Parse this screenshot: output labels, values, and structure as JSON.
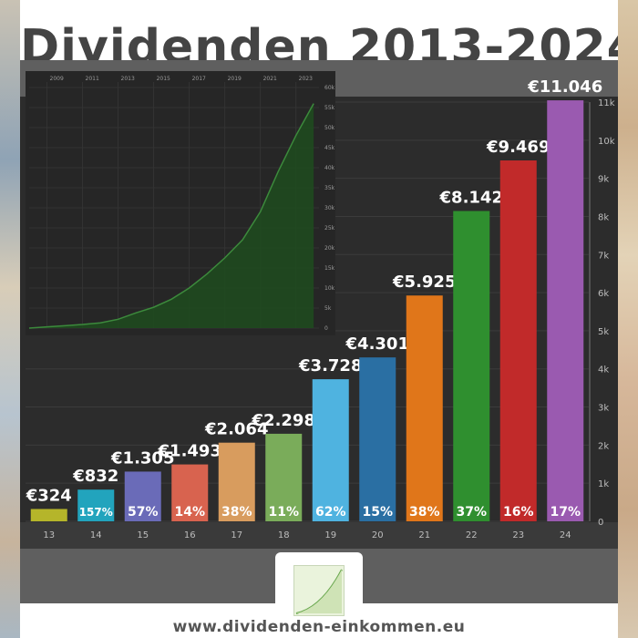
{
  "page": {
    "title": "Dividenden 2013-2024",
    "footer": "www.dividenden-einkommen.eu"
  },
  "chart_data": [
    {
      "type": "bar",
      "categories": [
        "13",
        "14",
        "15",
        "16",
        "17",
        "18",
        "19",
        "20",
        "21",
        "22",
        "23",
        "24"
      ],
      "values": [
        324,
        832,
        1305,
        1493,
        2064,
        2298,
        3728,
        4301,
        5925,
        8142,
        9469,
        11046
      ],
      "value_labels": [
        "€324",
        "€832",
        "€1.305",
        "€1.493",
        "€2.064",
        "€2.298",
        "€3.728",
        "€4.301",
        "€5.925",
        "€8.142",
        "€9.469",
        "€11.046"
      ],
      "growth_labels": [
        "",
        "157%",
        "57%",
        "14%",
        "38%",
        "11%",
        "62%",
        "15%",
        "38%",
        "37%",
        "16%",
        "17%"
      ],
      "colors": [
        "#b5b52a",
        "#22a4bd",
        "#6a6bb8",
        "#d8634f",
        "#d89c5e",
        "#7aac5a",
        "#4fb3e0",
        "#2a6fa3",
        "#e0761a",
        "#2f8f2f",
        "#c12a2a",
        "#9a5ab0"
      ],
      "yticks": [
        "0",
        "1k",
        "2k",
        "3k",
        "4k",
        "5k",
        "6k",
        "7k",
        "8k",
        "9k",
        "10k",
        "11k"
      ],
      "ylim": [
        0,
        11000
      ]
    },
    {
      "type": "area",
      "xticks": [
        "2009",
        "2011",
        "2013",
        "2015",
        "2017",
        "2019",
        "2021",
        "2023"
      ],
      "yticks": [
        "0",
        "5k",
        "10k",
        "15k",
        "20k",
        "25k",
        "30k",
        "35k",
        "40k",
        "45k",
        "50k",
        "55k",
        "60k"
      ],
      "ylim": [
        0,
        60000
      ],
      "x": [
        2008,
        2009,
        2010,
        2011,
        2012,
        2013,
        2014,
        2015,
        2016,
        2017,
        2018,
        2019,
        2020,
        2021,
        2022,
        2023,
        2024
      ],
      "y": [
        0,
        300,
        600,
        900,
        1300,
        2200,
        3800,
        5200,
        7200,
        10000,
        13500,
        17500,
        22000,
        29000,
        39000,
        48000,
        56000
      ],
      "color": "#3c8a3c"
    }
  ]
}
